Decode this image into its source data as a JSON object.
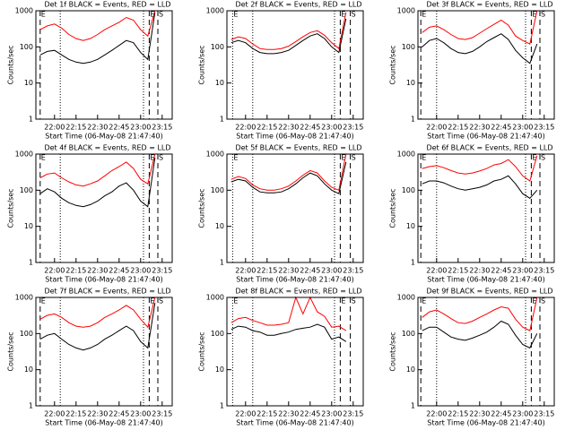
{
  "chart_data": [
    {
      "type": "line",
      "title": "Det 1f BLACK = Events, RED = LLD",
      "xlabel": "Start Time (06-May-08 21:47:40)",
      "ylabel": "Counts/sec",
      "x": [
        "21:50",
        "21:55",
        "22:00",
        "22:05",
        "22:10",
        "22:15",
        "22:20",
        "22:25",
        "22:30",
        "22:35",
        "22:40",
        "22:45",
        "22:50",
        "22:55",
        "23:00",
        "23:05",
        "23:10"
      ],
      "series": [
        {
          "name": "Events",
          "color": "#000000",
          "values": [
            60,
            75,
            80,
            60,
            45,
            38,
            35,
            38,
            45,
            60,
            80,
            110,
            150,
            130,
            70,
            45,
            900
          ]
        },
        {
          "name": "LLD",
          "color": "#ff0000",
          "values": [
            300,
            380,
            430,
            330,
            220,
            170,
            150,
            170,
            220,
            300,
            380,
            480,
            650,
            550,
            300,
            200,
            1000
          ]
        }
      ],
      "xlim": [
        "21:47",
        "23:22"
      ],
      "xticks": [
        "22:00",
        "22:15",
        "22:30",
        "22:45",
        "23:00",
        "23:15"
      ],
      "ylim": [
        1,
        1000
      ],
      "yticks": [
        1,
        10,
        100,
        1000
      ],
      "log_y": true,
      "vlines": [
        {
          "x": "21:50",
          "style": "dashed",
          "label": "E"
        },
        {
          "x": "22:04",
          "style": "dotted"
        },
        {
          "x": "23:02",
          "style": "dotted"
        },
        {
          "x": "23:06",
          "style": "dashed",
          "label": "E"
        },
        {
          "x": "23:12",
          "style": "dashed",
          "label": "S"
        }
      ]
    },
    {
      "type": "line",
      "title": "Det 2f BLACK = Events, RED = LLD",
      "xlabel": "Start Time (06-May-08 21:47:40)",
      "ylabel": "Counts/sec",
      "x": [
        "21:50",
        "21:55",
        "22:00",
        "22:05",
        "22:10",
        "22:15",
        "22:20",
        "22:25",
        "22:30",
        "22:35",
        "22:40",
        "22:45",
        "22:50",
        "22:55",
        "23:00",
        "23:05",
        "23:10"
      ],
      "series": [
        {
          "name": "Events",
          "color": "#000000",
          "values": [
            130,
            150,
            130,
            90,
            70,
            65,
            65,
            70,
            80,
            110,
            150,
            200,
            230,
            170,
            100,
            70,
            600
          ]
        },
        {
          "name": "LLD",
          "color": "#ff0000",
          "values": [
            160,
            190,
            170,
            120,
            90,
            85,
            85,
            90,
            105,
            140,
            190,
            250,
            280,
            210,
            130,
            90,
            900
          ]
        }
      ],
      "xlim": [
        "21:47",
        "23:22"
      ],
      "xticks": [
        "22:00",
        "22:15",
        "22:30",
        "22:45",
        "23:00",
        "23:15"
      ],
      "ylim": [
        1,
        1000
      ],
      "yticks": [
        1,
        10,
        100,
        1000
      ],
      "log_y": true,
      "vlines": [
        {
          "x": "21:51",
          "style": "dotted",
          "label": "E"
        },
        {
          "x": "22:05",
          "style": "dotted"
        },
        {
          "x": "23:02",
          "style": "dotted"
        },
        {
          "x": "23:06",
          "style": "dashed",
          "label": "E"
        },
        {
          "x": "23:13",
          "style": "dashed",
          "label": "S"
        }
      ]
    },
    {
      "type": "line",
      "title": "Det 3f BLACK = Events, RED = LLD",
      "xlabel": "Start Time (06-May-08 21:47:40)",
      "ylabel": "Counts/sec",
      "x": [
        "21:50",
        "21:55",
        "22:00",
        "22:05",
        "22:10",
        "22:15",
        "22:20",
        "22:25",
        "22:30",
        "22:35",
        "22:40",
        "22:45",
        "22:50",
        "22:55",
        "23:00",
        "23:05",
        "23:10"
      ],
      "series": [
        {
          "name": "Events",
          "color": "#000000",
          "values": [
            100,
            150,
            170,
            130,
            90,
            70,
            65,
            75,
            100,
            140,
            180,
            230,
            160,
            80,
            50,
            35,
            120
          ]
        },
        {
          "name": "LLD",
          "color": "#ff0000",
          "values": [
            250,
            350,
            380,
            300,
            220,
            170,
            160,
            180,
            240,
            320,
            420,
            550,
            400,
            200,
            150,
            120,
            1000
          ]
        }
      ],
      "xlim": [
        "21:47",
        "23:22"
      ],
      "xticks": [
        "22:00",
        "22:15",
        "22:30",
        "22:45",
        "23:00",
        "23:15"
      ],
      "ylim": [
        1,
        1000
      ],
      "yticks": [
        1,
        10,
        100,
        1000
      ],
      "log_y": true,
      "vlines": [
        {
          "x": "21:49",
          "style": "dashed",
          "label": "E"
        },
        {
          "x": "22:00",
          "style": "dotted"
        },
        {
          "x": "23:02",
          "style": "dotted"
        },
        {
          "x": "23:06",
          "style": "dashed",
          "label": "E"
        },
        {
          "x": "23:12",
          "style": "dashed",
          "label": "S"
        }
      ]
    },
    {
      "type": "line",
      "title": "Det 4f BLACK = Events, RED = LLD",
      "xlabel": "Start Time (06-May-08 21:47:40)",
      "ylabel": "Counts/sec",
      "x": [
        "21:50",
        "21:55",
        "22:00",
        "22:05",
        "22:10",
        "22:15",
        "22:20",
        "22:25",
        "22:30",
        "22:35",
        "22:40",
        "22:45",
        "22:50",
        "22:55",
        "23:00",
        "23:05",
        "23:10"
      ],
      "series": [
        {
          "name": "Events",
          "color": "#000000",
          "values": [
            80,
            110,
            90,
            60,
            45,
            38,
            35,
            40,
            50,
            70,
            90,
            130,
            160,
            100,
            50,
            35,
            800
          ]
        },
        {
          "name": "LLD",
          "color": "#ff0000",
          "values": [
            220,
            280,
            300,
            220,
            170,
            140,
            130,
            150,
            180,
            250,
            350,
            450,
            600,
            400,
            200,
            150,
            1000
          ]
        }
      ],
      "xlim": [
        "21:47",
        "23:22"
      ],
      "xticks": [
        "22:00",
        "22:15",
        "22:30",
        "22:45",
        "23:00",
        "23:15"
      ],
      "ylim": [
        1,
        1000
      ],
      "yticks": [
        1,
        10,
        100,
        1000
      ],
      "log_y": true,
      "vlines": [
        {
          "x": "21:50",
          "style": "dashed",
          "label": "E"
        },
        {
          "x": "22:04",
          "style": "dotted"
        },
        {
          "x": "23:02",
          "style": "dotted"
        },
        {
          "x": "23:06",
          "style": "dashed",
          "label": "E"
        },
        {
          "x": "23:12",
          "style": "dashed",
          "label": "S"
        }
      ]
    },
    {
      "type": "line",
      "title": "Det 5f BLACK = Events, RED = LLD",
      "xlabel": "Start Time (06-May-08 21:47:40)",
      "ylabel": "Counts/sec",
      "x": [
        "21:50",
        "21:55",
        "22:00",
        "22:05",
        "22:10",
        "22:15",
        "22:20",
        "22:25",
        "22:30",
        "22:35",
        "22:40",
        "22:45",
        "22:50",
        "22:55",
        "23:00",
        "23:05",
        "23:10"
      ],
      "series": [
        {
          "name": "Events",
          "color": "#000000",
          "values": [
            170,
            200,
            180,
            120,
            90,
            85,
            85,
            90,
            110,
            150,
            220,
            300,
            250,
            150,
            100,
            80,
            600
          ]
        },
        {
          "name": "LLD",
          "color": "#ff0000",
          "values": [
            200,
            240,
            210,
            140,
            110,
            100,
            100,
            110,
            130,
            180,
            260,
            350,
            300,
            180,
            120,
            100,
            1000
          ]
        }
      ],
      "xlim": [
        "21:47",
        "23:22"
      ],
      "xticks": [
        "22:00",
        "22:15",
        "22:30",
        "22:45",
        "23:00",
        "23:15"
      ],
      "ylim": [
        1,
        1000
      ],
      "yticks": [
        1,
        10,
        100,
        1000
      ],
      "log_y": true,
      "vlines": [
        {
          "x": "21:51",
          "style": "dotted",
          "label": "E"
        },
        {
          "x": "22:05",
          "style": "dotted"
        },
        {
          "x": "23:02",
          "style": "dotted"
        },
        {
          "x": "23:06",
          "style": "dashed",
          "label": "E"
        },
        {
          "x": "23:13",
          "style": "dashed",
          "label": "S"
        }
      ]
    },
    {
      "type": "line",
      "title": "Det 6f BLACK = Events, RED = LLD",
      "xlabel": "Start Time (06-May-08 21:47:40)",
      "ylabel": "Counts/sec",
      "x": [
        "21:50",
        "21:55",
        "22:00",
        "22:05",
        "22:10",
        "22:15",
        "22:20",
        "22:25",
        "22:30",
        "22:35",
        "22:40",
        "22:45",
        "22:50",
        "22:55",
        "23:00",
        "23:05",
        "23:10"
      ],
      "series": [
        {
          "name": "Events",
          "color": "#000000",
          "values": [
            150,
            180,
            180,
            160,
            130,
            110,
            100,
            110,
            120,
            140,
            180,
            200,
            250,
            150,
            80,
            60,
            100
          ]
        },
        {
          "name": "LLD",
          "color": "#ff0000",
          "values": [
            400,
            450,
            480,
            420,
            350,
            300,
            280,
            300,
            340,
            400,
            500,
            550,
            700,
            450,
            250,
            180,
            900
          ]
        }
      ],
      "xlim": [
        "21:47",
        "23:22"
      ],
      "xticks": [
        "22:00",
        "22:15",
        "22:30",
        "22:45",
        "23:00",
        "23:15"
      ],
      "ylim": [
        1,
        1000
      ],
      "yticks": [
        1,
        10,
        100,
        1000
      ],
      "log_y": true,
      "vlines": [
        {
          "x": "21:49",
          "style": "dashed",
          "label": "E"
        },
        {
          "x": "22:00",
          "style": "dotted"
        },
        {
          "x": "23:02",
          "style": "dotted"
        },
        {
          "x": "23:06",
          "style": "dashed",
          "label": "E"
        },
        {
          "x": "23:12",
          "style": "dashed",
          "label": "S"
        }
      ]
    },
    {
      "type": "line",
      "title": "Det 7f BLACK = Events, RED = LLD",
      "xlabel": "Start Time (06-May-08 21:47:40)",
      "ylabel": "Counts/sec",
      "x": [
        "21:50",
        "21:55",
        "22:00",
        "22:05",
        "22:10",
        "22:15",
        "22:20",
        "22:25",
        "22:30",
        "22:35",
        "22:40",
        "22:45",
        "22:50",
        "22:55",
        "23:00",
        "23:05",
        "23:10"
      ],
      "series": [
        {
          "name": "Events",
          "color": "#000000",
          "values": [
            70,
            90,
            100,
            70,
            50,
            40,
            35,
            40,
            50,
            70,
            90,
            120,
            160,
            120,
            60,
            40,
            700
          ]
        },
        {
          "name": "LLD",
          "color": "#ff0000",
          "values": [
            250,
            320,
            350,
            280,
            200,
            160,
            150,
            160,
            200,
            280,
            350,
            450,
            600,
            450,
            250,
            150,
            1000
          ]
        }
      ],
      "xlim": [
        "21:47",
        "23:22"
      ],
      "xticks": [
        "22:00",
        "22:15",
        "22:30",
        "22:45",
        "23:00",
        "23:15"
      ],
      "ylim": [
        1,
        1000
      ],
      "yticks": [
        1,
        10,
        100,
        1000
      ],
      "log_y": true,
      "vlines": [
        {
          "x": "21:50",
          "style": "dashed",
          "label": "E"
        },
        {
          "x": "22:04",
          "style": "dotted"
        },
        {
          "x": "23:02",
          "style": "dotted"
        },
        {
          "x": "23:06",
          "style": "dashed",
          "label": "E"
        },
        {
          "x": "23:12",
          "style": "dashed",
          "label": "S"
        }
      ]
    },
    {
      "type": "line",
      "title": "Det 8f BLACK = Events, RED = LLD",
      "xlabel": "Start Time (06-May-08 21:47:40)",
      "ylabel": "Counts/sec",
      "x": [
        "21:50",
        "21:55",
        "22:00",
        "22:05",
        "22:10",
        "22:15",
        "22:20",
        "22:25",
        "22:30",
        "22:35",
        "22:40",
        "22:45",
        "22:50",
        "22:55",
        "23:00",
        "23:05",
        "23:10"
      ],
      "series": [
        {
          "name": "Events",
          "color": "#000000",
          "values": [
            130,
            160,
            150,
            120,
            110,
            90,
            90,
            100,
            110,
            130,
            140,
            150,
            180,
            150,
            70,
            80,
            60
          ]
        },
        {
          "name": "LLD",
          "color": "#ff0000",
          "values": [
            200,
            260,
            280,
            230,
            200,
            170,
            170,
            180,
            200,
            1000,
            350,
            1000,
            400,
            300,
            150,
            160,
            120
          ]
        }
      ],
      "xlim": [
        "21:47",
        "23:22"
      ],
      "xticks": [
        "22:00",
        "22:15",
        "22:30",
        "22:45",
        "23:00",
        "23:15"
      ],
      "ylim": [
        1,
        1000
      ],
      "yticks": [
        1,
        10,
        100,
        1000
      ],
      "log_y": true,
      "vlines": [
        {
          "x": "21:51",
          "style": "dotted",
          "label": "E"
        },
        {
          "x": "22:05",
          "style": "dotted"
        },
        {
          "x": "23:02",
          "style": "dotted"
        },
        {
          "x": "23:06",
          "style": "dashed",
          "label": "E"
        },
        {
          "x": "23:13",
          "style": "dashed",
          "label": "S"
        }
      ]
    },
    {
      "type": "line",
      "title": "Det 9f BLACK = Events, RED = LLD",
      "xlabel": "Start Time (06-May-08 21:47:40)",
      "ylabel": "Counts/sec",
      "x": [
        "21:50",
        "21:55",
        "22:00",
        "22:05",
        "22:10",
        "22:15",
        "22:20",
        "22:25",
        "22:30",
        "22:35",
        "22:40",
        "22:45",
        "22:50",
        "22:55",
        "23:00",
        "23:05",
        "23:10"
      ],
      "series": [
        {
          "name": "Events",
          "color": "#000000",
          "values": [
            120,
            150,
            150,
            110,
            80,
            70,
            65,
            75,
            90,
            110,
            150,
            220,
            180,
            90,
            50,
            40,
            100
          ]
        },
        {
          "name": "LLD",
          "color": "#ff0000",
          "values": [
            280,
            400,
            450,
            350,
            260,
            200,
            190,
            220,
            280,
            350,
            450,
            550,
            500,
            250,
            150,
            120,
            1000
          ]
        }
      ],
      "xlim": [
        "21:47",
        "23:22"
      ],
      "xticks": [
        "22:00",
        "22:15",
        "22:30",
        "22:45",
        "23:00",
        "23:15"
      ],
      "ylim": [
        1,
        1000
      ],
      "yticks": [
        1,
        10,
        100,
        1000
      ],
      "log_y": true,
      "vlines": [
        {
          "x": "21:49",
          "style": "dashed",
          "label": "E"
        },
        {
          "x": "22:00",
          "style": "dotted"
        },
        {
          "x": "23:02",
          "style": "dotted"
        },
        {
          "x": "23:06",
          "style": "dashed",
          "label": "E"
        },
        {
          "x": "23:12",
          "style": "dashed",
          "label": "S"
        }
      ]
    }
  ]
}
